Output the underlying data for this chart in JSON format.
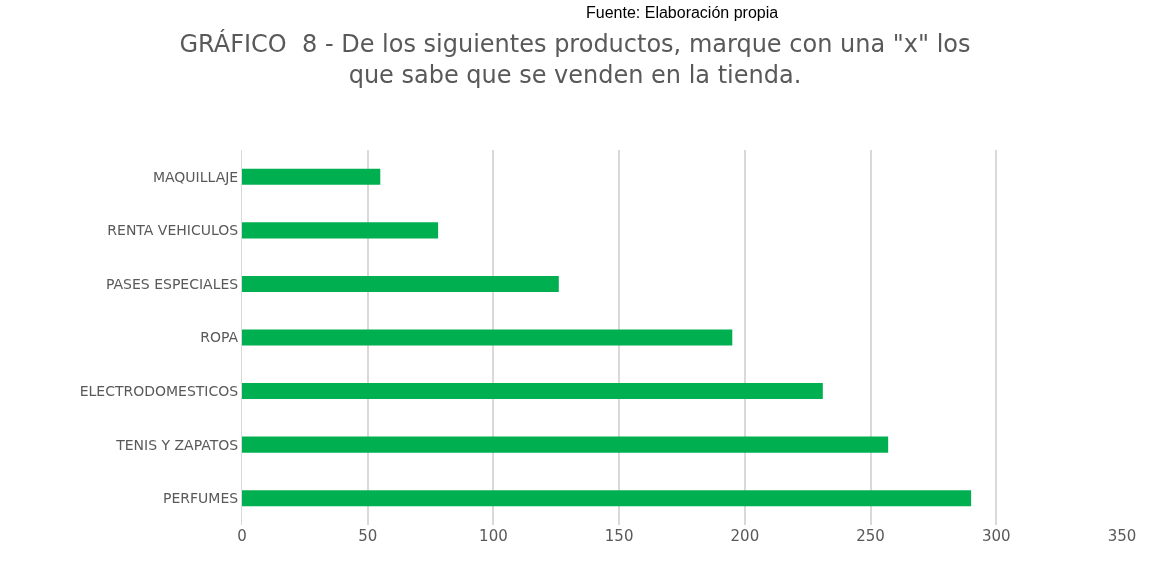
{
  "chart_data": {
    "type": "bar",
    "orientation": "horizontal",
    "title": "GRÁFICO  8 - De los siguientes productos, marque con una \"x\" los que sabe que se venden en la tienda.",
    "categories": [
      "MAQUILLAJE",
      "RENTA VEHICULOS",
      "PASES ESPECIALES",
      "ROPA",
      "ELECTRODOMESTICOS",
      "TENIS Y ZAPATOS",
      "PERFUMES"
    ],
    "values": [
      55,
      78,
      126,
      195,
      231,
      257,
      290
    ],
    "color": "#00b050",
    "xlim": [
      0,
      350
    ],
    "xticks": [
      0,
      50,
      100,
      150,
      200,
      250,
      300,
      350
    ],
    "grid": "x",
    "annotations": [
      "Fuente: Elaboración propia"
    ]
  }
}
